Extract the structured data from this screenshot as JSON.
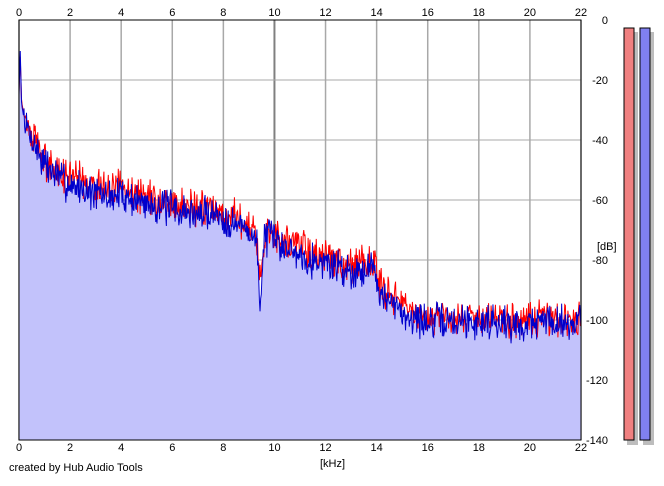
{
  "footer": {
    "credit": "created by Hub Audio Tools"
  },
  "chart_data": {
    "type": "area",
    "title": "",
    "xlabel": "[kHz]",
    "ylabel": "[dB]",
    "xlim": [
      0,
      22
    ],
    "ylim": [
      -140,
      0
    ],
    "xticks": [
      0,
      2,
      4,
      6,
      8,
      10,
      12,
      14,
      16,
      18,
      20,
      22
    ],
    "yticks": [
      0,
      -20,
      -40,
      -60,
      -80,
      -100,
      -120,
      -140
    ],
    "grid": true,
    "colors": {
      "plot_background": "#ffffff",
      "grid": "#a8a8a8",
      "grid_major": "#808080",
      "fill": "#c2c2fb",
      "series_red": "#ff0000",
      "series_blue": "#0000cc",
      "meter_red": "#f08080",
      "meter_blue": "#8080f0"
    },
    "series": [
      {
        "color": "#0000cc",
        "x": [
          0,
          0.05,
          0.1,
          0.2,
          0.4,
          0.7,
          1,
          1.5,
          2,
          2.5,
          3,
          3.5,
          4,
          4.5,
          5,
          5.5,
          6,
          6.5,
          7,
          7.5,
          8,
          8.5,
          9,
          9.3,
          9.45,
          9.6,
          10,
          10.5,
          11,
          11.5,
          12,
          12.5,
          13,
          13.5,
          13.9,
          14.2,
          14.6,
          15,
          15.5,
          16,
          16.5,
          17,
          17.5,
          18,
          18.5,
          19,
          19.5,
          20,
          20.5,
          21,
          21.5,
          22
        ],
        "y": [
          -25,
          -10,
          -28,
          -33,
          -38,
          -43,
          -48,
          -52,
          -55,
          -56,
          -58,
          -59,
          -58,
          -60,
          -61,
          -62,
          -63,
          -64,
          -65,
          -64,
          -66,
          -68,
          -70,
          -74,
          -95,
          -72,
          -73,
          -76,
          -78,
          -80,
          -81,
          -82,
          -84,
          -83,
          -82,
          -92,
          -95,
          -98,
          -99,
          -101,
          -100,
          -101,
          -100,
          -101,
          -100,
          -101,
          -102,
          -101,
          -100,
          -100,
          -101,
          -100
        ]
      },
      {
        "color": "#ff0000",
        "x": [
          0,
          0.05,
          0.1,
          0.2,
          0.4,
          0.7,
          1,
          1.5,
          2,
          2.5,
          3,
          3.5,
          4,
          4.5,
          5,
          5.5,
          6,
          6.5,
          7,
          7.5,
          8,
          8.5,
          9,
          9.3,
          9.45,
          9.6,
          10,
          10.5,
          11,
          11.5,
          12,
          12.5,
          13,
          13.5,
          13.9,
          14.2,
          14.6,
          15,
          15.5,
          16,
          16.5,
          17,
          17.5,
          18,
          18.5,
          19,
          19.5,
          20,
          20.5,
          21,
          21.5,
          22
        ],
        "y": [
          -24,
          -12,
          -27,
          -32,
          -37,
          -42,
          -47,
          -51,
          -53,
          -54,
          -56,
          -57,
          -56,
          -58,
          -59,
          -60,
          -61,
          -62,
          -63,
          -62,
          -64,
          -66,
          -68,
          -72,
          -88,
          -70,
          -71,
          -74,
          -76,
          -78,
          -79,
          -80,
          -82,
          -81,
          -80,
          -90,
          -93,
          -96,
          -98,
          -100,
          -99,
          -100,
          -99,
          -100,
          -99,
          -100,
          -101,
          -100,
          -99,
          -99,
          -100,
          -99
        ]
      }
    ]
  }
}
